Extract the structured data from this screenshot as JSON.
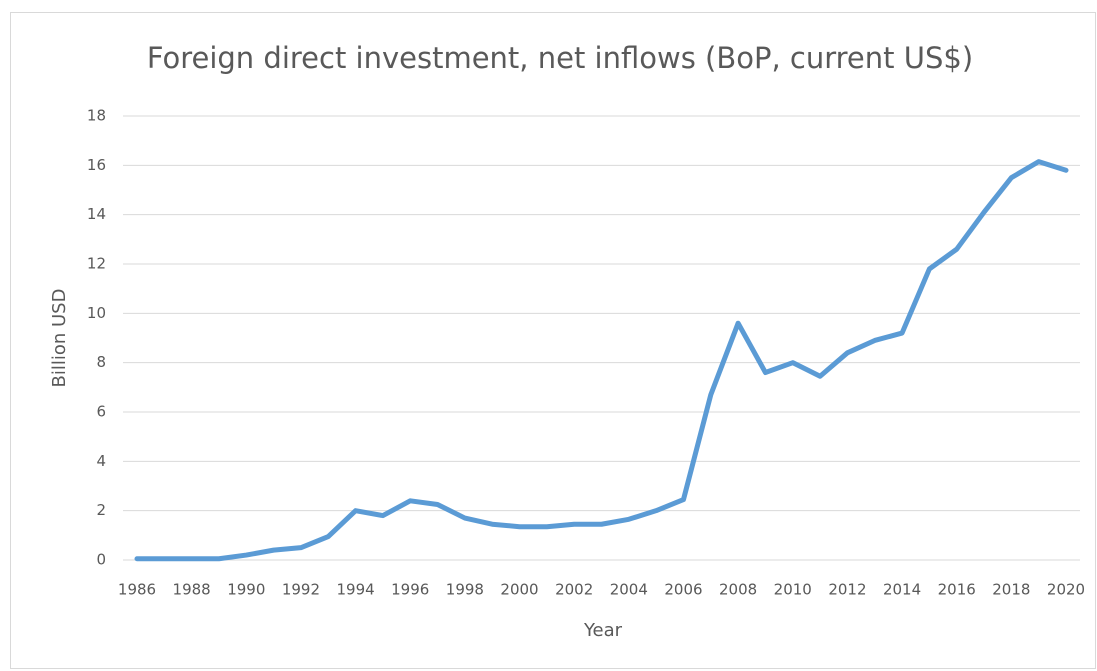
{
  "chart_data": {
    "type": "line",
    "title": "Foreign direct investment, net inflows (BoP, current US$)",
    "x_label": "Year",
    "y_label": "Billion USD",
    "x": [
      1986,
      1987,
      1988,
      1989,
      1990,
      1991,
      1992,
      1993,
      1994,
      1995,
      1996,
      1997,
      1998,
      1999,
      2000,
      2001,
      2002,
      2003,
      2004,
      2005,
      2006,
      2007,
      2008,
      2009,
      2010,
      2011,
      2012,
      2013,
      2014,
      2015,
      2016,
      2017,
      2018,
      2019,
      2020
    ],
    "series": [
      {
        "name": "Foreign direct investment",
        "color": "#5b9bd5",
        "values": [
          0.05,
          0.05,
          0.05,
          0.05,
          0.2,
          0.4,
          0.5,
          0.95,
          2.0,
          1.8,
          2.4,
          2.25,
          1.7,
          1.45,
          1.35,
          1.35,
          1.45,
          1.45,
          1.65,
          2.0,
          2.45,
          6.7,
          9.6,
          7.6,
          8.0,
          7.45,
          8.4,
          8.9,
          9.2,
          11.8,
          12.6,
          14.1,
          15.5,
          16.15,
          15.8
        ]
      }
    ],
    "xlim": [
      1986,
      2020
    ],
    "xticks": [
      1986,
      1988,
      1990,
      1992,
      1994,
      1996,
      1998,
      2000,
      2002,
      2004,
      2006,
      2008,
      2010,
      2012,
      2014,
      2016,
      2018,
      2020
    ],
    "ylim": [
      0,
      18
    ],
    "yticks": [
      0,
      2,
      4,
      6,
      8,
      10,
      12,
      14,
      16,
      18
    ],
    "grid": true
  }
}
